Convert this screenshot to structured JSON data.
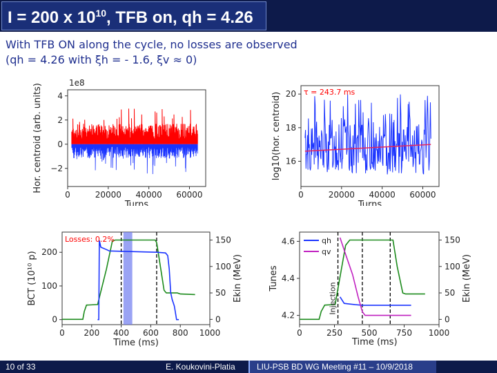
{
  "slide": {
    "title_main": "I = 200 x 10",
    "title_sup": "10",
    "title_tail": ", TFB on, qh = 4.26",
    "subtitle_line1": "With TFB ON along the cycle, no losses are observed",
    "subtitle_line2": "(qh = 4.26  with ξh = - 1.6, ξv ≈ 0)"
  },
  "footer": {
    "left": "10 of 33",
    "middle": "E. Koukovini-Platia",
    "right": "LIU-PSB BD WG Meeting #11 – 10/9/2018"
  },
  "extra_label": "Time (ms)",
  "chart_data": [
    {
      "type": "line",
      "name_ref": "hor-centroid-vs-turns",
      "offset_label": "1e8",
      "xlabel": "Turns",
      "ylabel": "Hor. centroid (arb. units)",
      "xticks": [
        "0",
        "20000",
        "40000",
        "60000"
      ],
      "yticks": [
        "−2",
        "0",
        "2",
        "4"
      ],
      "xlim": [
        0,
        68000
      ],
      "ylim": [
        -3.5,
        4.5
      ],
      "colors": {
        "pos": "#ff0000",
        "neg": "#1a33ff"
      }
    },
    {
      "type": "line",
      "name_ref": "log-hor-centroid-vs-turns",
      "xlabel": "Turns",
      "ylabel": "log10(hor. centroid)",
      "xticks": [
        "0",
        "20000",
        "40000",
        "60000"
      ],
      "yticks": [
        "16",
        "18",
        "20"
      ],
      "xlim": [
        0,
        68000
      ],
      "ylim": [
        14.5,
        20.5
      ],
      "annotation": "τ = 243.7 ms",
      "fit_line": {
        "y_start": 16.6,
        "y_end": 17.0
      },
      "colors": {
        "data": "#1a33ff",
        "fit": "#e8245a",
        "annotation": "#ff0000"
      }
    },
    {
      "type": "line",
      "name_ref": "bct-vs-time",
      "xlabel": "Time (ms)",
      "ylabel": "BCT (10¹⁰ p)",
      "y2label": "Ekin (MeV)",
      "annotation": "Losses: 0.2%",
      "xticks": [
        "0",
        "200",
        "400",
        "600",
        "800",
        "1000"
      ],
      "yticks": [
        "0",
        "100",
        "200"
      ],
      "y2ticks": [
        "0",
        "50",
        "100",
        "150"
      ],
      "xlim": [
        0,
        1000
      ],
      "ylim": [
        -15,
        260
      ],
      "y2lim": [
        -10,
        165
      ],
      "vlines": [
        400,
        640
      ],
      "shaded": [
        415,
        475
      ],
      "colors": {
        "bct": "#1a33ff",
        "ekin": "#1b8a1b",
        "shade": "#6f7cf0",
        "annotation": "#ff0000"
      }
    },
    {
      "type": "line",
      "name_ref": "tunes-vs-time",
      "xlabel": "Time (ms)",
      "ylabel": "Tunes",
      "y2label": "Ekin (MeV)",
      "legend": [
        "qh",
        "qv"
      ],
      "legend_position": "top-left",
      "annotation": "Injection",
      "xticks": [
        "0",
        "250",
        "500",
        "750",
        "1000"
      ],
      "yticks": [
        "4.2",
        "4.4",
        "4.6"
      ],
      "y2ticks": [
        "0",
        "50",
        "100",
        "150"
      ],
      "xlim": [
        0,
        1000
      ],
      "ylim": [
        4.15,
        4.65
      ],
      "y2lim": [
        -10,
        165
      ],
      "vlines": [
        275,
        450,
        650
      ],
      "colors": {
        "qh": "#1a33ff",
        "qv": "#c020c0",
        "ekin": "#1b8a1b"
      }
    }
  ]
}
